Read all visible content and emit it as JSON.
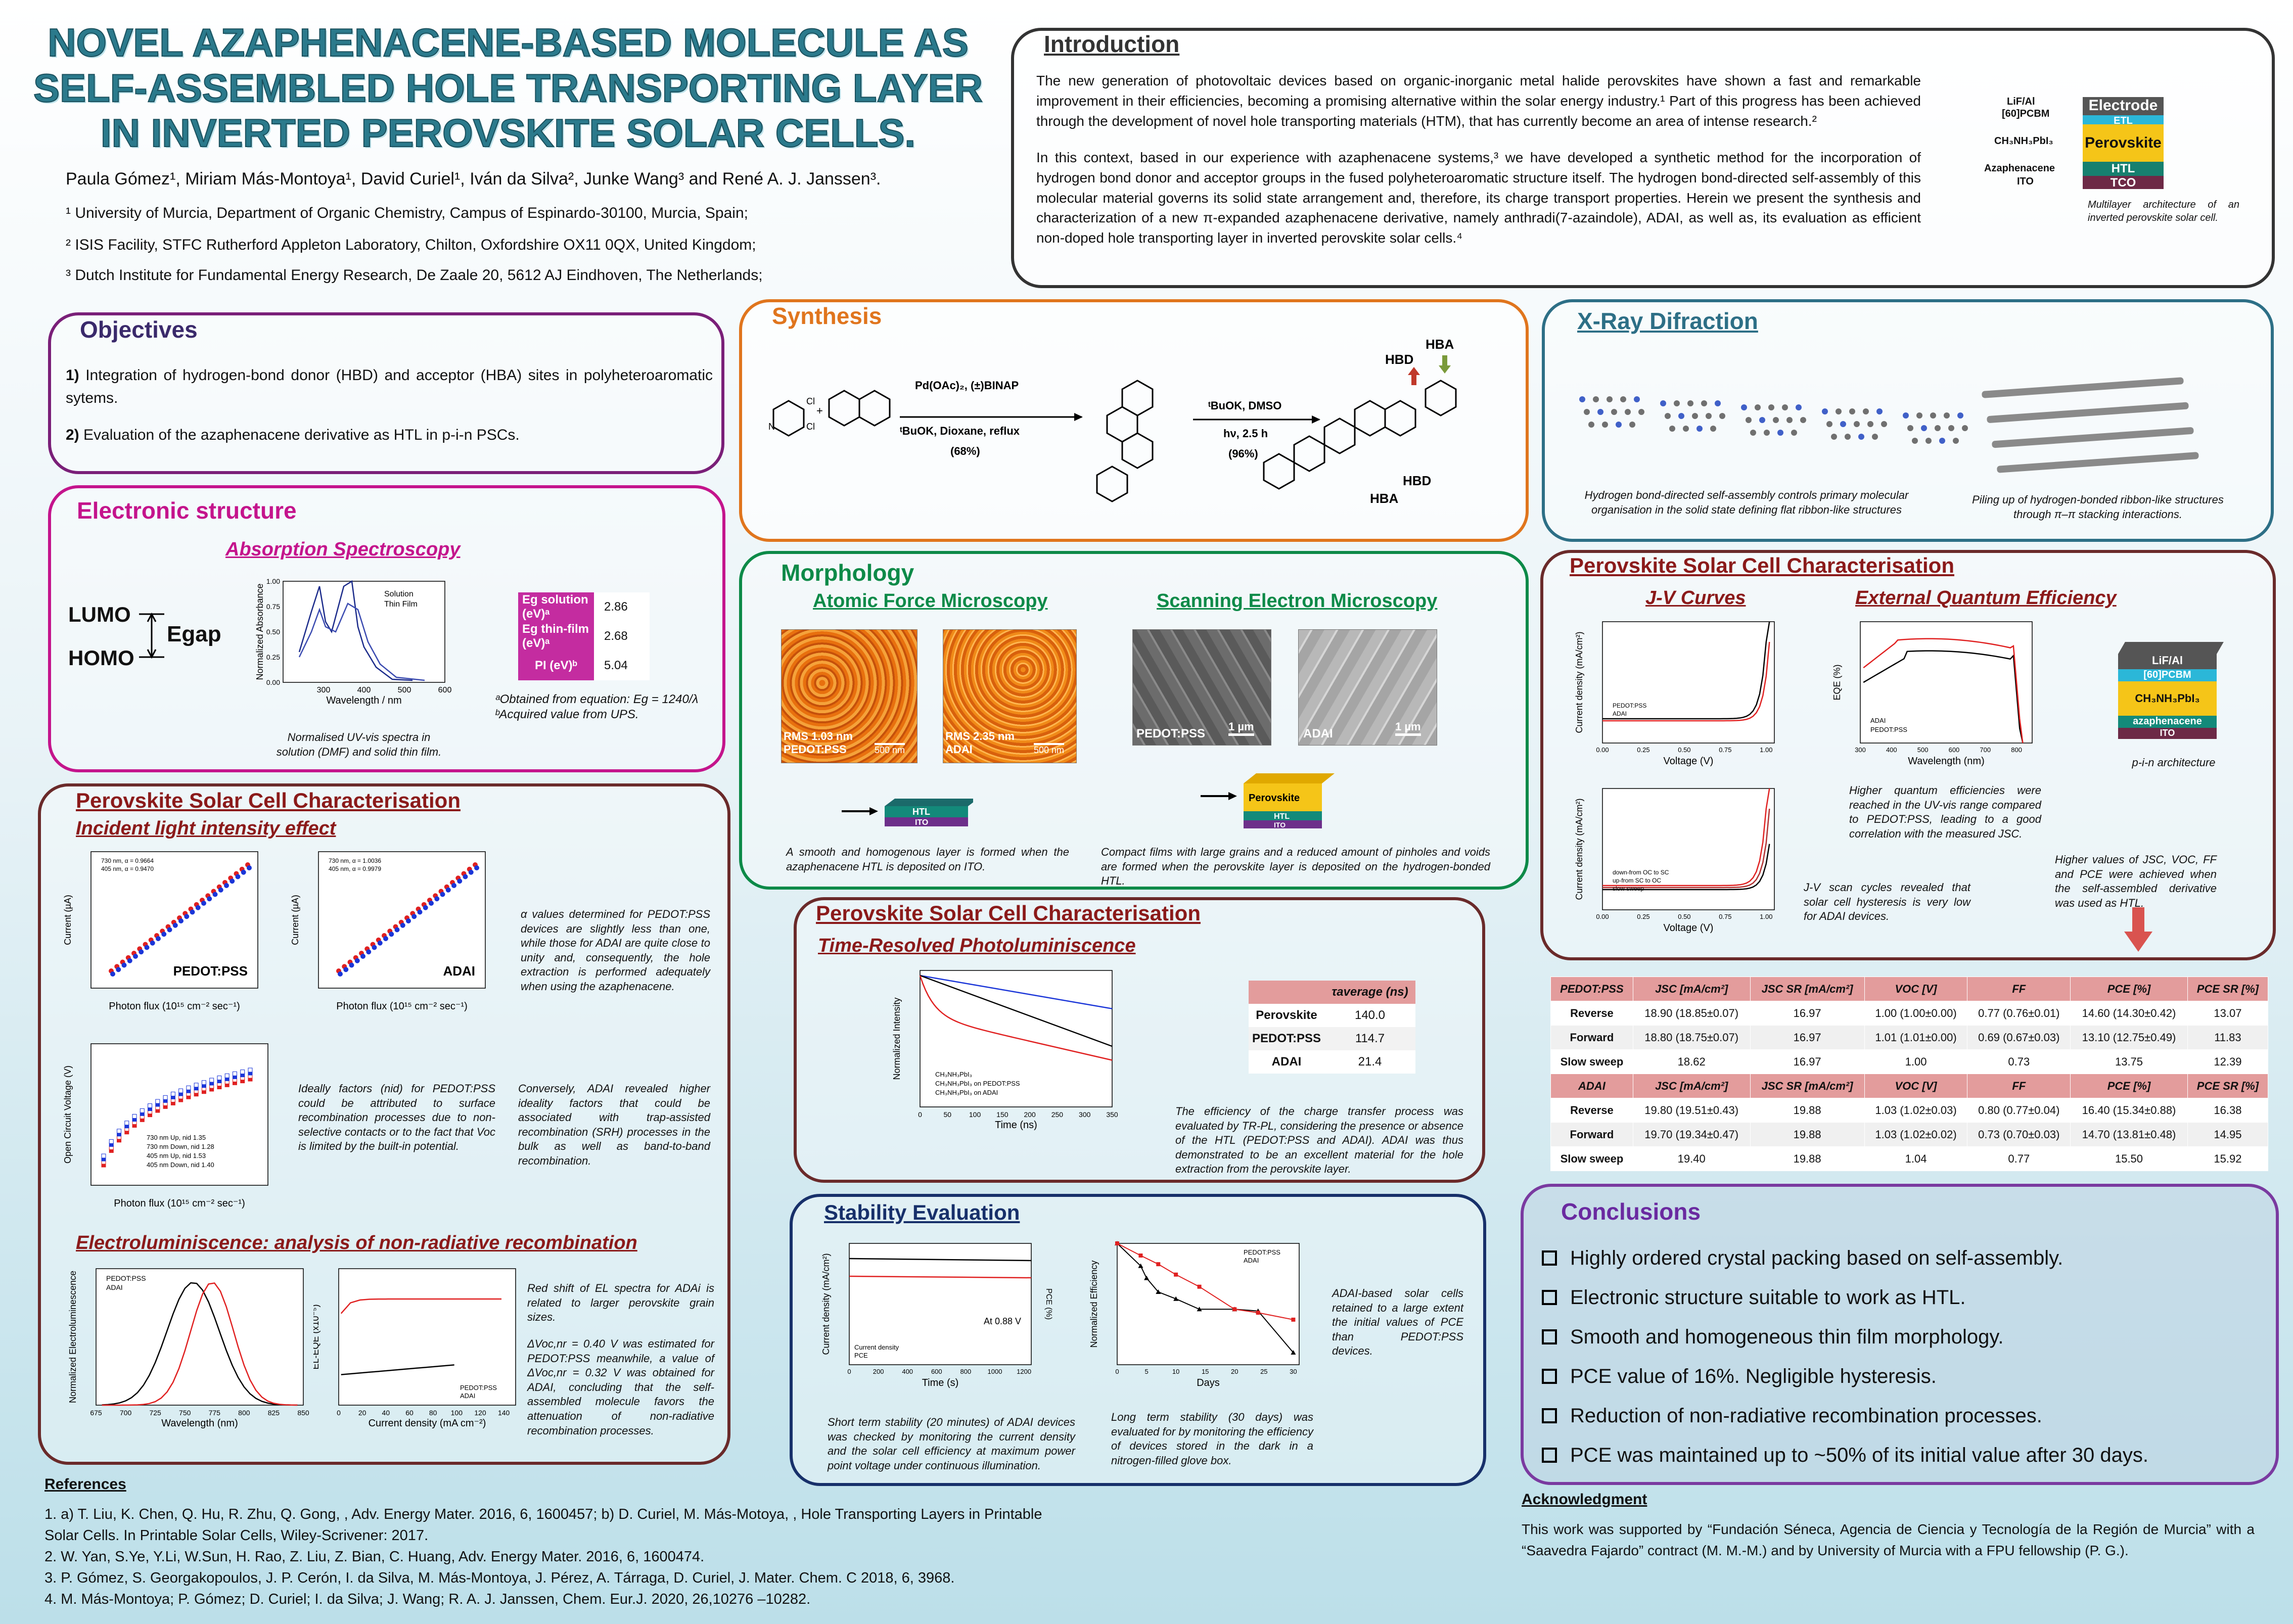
{
  "title": "NOVEL AZAPHENACENE-BASED MOLECULE AS SELF-ASSEMBLED HOLE TRANSPORTING LAYER IN INVERTED PEROVSKITE SOLAR CELLS.",
  "authors": "Paula Gómez¹, Miriam Más-Montoya¹, David Curiel¹, Iván da Silva², Junke Wang³ and René A. J. Janssen³.",
  "affiliations": [
    "¹ University of Murcia, Department of Organic Chemistry, Campus of Espinardo-30100, Murcia, Spain;",
    "² ISIS Facility, STFC Rutherford Appleton Laboratory, Chilton, Oxfordshire OX11 0QX, United Kingdom;",
    "³ Dutch Institute for Fundamental Energy Research, De Zaale 20, 5612 AJ Eindhoven, The Netherlands;"
  ],
  "intro": {
    "title": "Introduction",
    "p1": "The new generation of photovoltaic devices based on organic-inorganic metal halide perovskites have shown a fast and remarkable improvement in their efficiencies, becoming a promising alternative within the solar energy industry.¹ Part of this progress has been achieved through the development of novel hole transporting materials (HTM), that has currently become an area of intense research.²",
    "p2": "In this context, based in our experience with azaphenacene systems,³ we have developed a synthetic method for the incorporation of hydrogen bond donor and acceptor groups in the fused polyheteroaromatic structure itself. The hydrogen bond-directed self-assembly of this molecular material governs its solid state arrangement and, therefore, its charge transport properties. Herein we present the synthesis and characterization of a new π-expanded azaphenacene derivative, namely anthradi(7-azaindole), ADAI, as well as, its evaluation as efficient non-doped hole transporting layer in inverted perovskite solar cells.⁴",
    "stack_labels": [
      "LiF/Al",
      "[60]PCBM",
      "CH₃NH₃PbI₃",
      "Azaphenacene",
      "ITO"
    ],
    "stack_layers": [
      "Electrode",
      "ETL",
      "Perovskite",
      "HTL",
      "TCO"
    ],
    "caption": "Multilayer architecture of an inverted perovskite solar cell."
  },
  "objectives": {
    "title": "Objectives",
    "o1_num": "1)",
    "o1": "Integration of hydrogen-bond donor (HBD) and acceptor (HBA) sites in polyheteroaromatic sytems.",
    "o2_num": "2)",
    "o2": "Evaluation of the azaphenacene derivative as HTL in p-i-n PSCs."
  },
  "synthesis": {
    "title": "Synthesis",
    "step1_top": "Pd(OAc)₂, (±)BINAP",
    "step1_bot": "ᵗBuOK, Dioxane, reflux",
    "step1_yield": "(68%)",
    "step2_top": "ᵗBuOK, DMSO",
    "step2_bot": "hν, 2.5 h",
    "step2_yield": "(96%)",
    "hbd": "HBD",
    "hba": "HBA"
  },
  "xray": {
    "title": "X-Ray Difraction",
    "cap1": "Hydrogen bond-directed self-assembly controls primary molecular organisation in the solid state defining flat ribbon-like structures",
    "cap2": "Piling up of hydrogen-bonded ribbon-like structures through π–π stacking interactions."
  },
  "electronic": {
    "title": "Electronic structure",
    "sub": "Absorption Spectroscopy",
    "lumo": "LUMO",
    "homo": "HOMO",
    "egap": "Egap",
    "legend1": "Solution",
    "legend2": "Thin Film",
    "xlabel": "Wavelength / nm",
    "ylabel": "Normalized Absorbance",
    "caption": "Normalised UV-vis spectra in solution (DMF) and solid thin film.",
    "table": [
      {
        "k": "Eg solution (eV)ᵃ",
        "v": "2.86"
      },
      {
        "k": "Eg thin-film (eV)ᵃ",
        "v": "2.68"
      },
      {
        "k": "PI (eV)ᵇ",
        "v": "5.04"
      }
    ],
    "note1": "ᵃObtained from equation: Eg = 1240/λ",
    "note2": "ᵇAcquired value from UPS."
  },
  "morph": {
    "title": "Morphology",
    "afm": "Atomic Force Microscopy",
    "sem": "Scanning Electron Microscopy",
    "afm1": "RMS 1.03 nm PEDOT:PSS",
    "afm2": "RMS 2.35 nm ADAI",
    "scale_afm": "500 nm",
    "sem1": "PEDOT:PSS",
    "sem2": "ADAI",
    "scale_sem": "1 µm",
    "htl": "HTL",
    "ito": "ITO",
    "perov": "Perovskite",
    "cap1": "A smooth and homogenous layer is formed when the azaphenacene HTL is deposited on ITO.",
    "cap2": "Compact films with large grains and a reduced amount of pinholes and voids are formed when the perovskite layer is deposited on the hydrogen-bonded HTL."
  },
  "psc_left": {
    "title": "Perovskite Solar Cell Characterisation",
    "sub1": "Incident light intensity effect",
    "pedot": "PEDOT:PSS",
    "adai": "ADAI",
    "xlabel": "Photon flux (10¹⁵ cm⁻² sec⁻¹)",
    "ylabel_i": "Current (µA)",
    "ylabel_v": "Open Circuit Voltage (V)",
    "leg_a1": "730 nm, α = 0.9664",
    "leg_a2": "405 nm, α = 0.9470",
    "leg_b1": "730 nm, α = 1.0036",
    "leg_b2": "405 nm, α = 0.9979",
    "alpha_text": "α values determined for PEDOT:PSS devices are slightly less than one, while those for ADAI are quite close to unity and, consequently, the hole extraction is performed adequately when using the azaphenacene.",
    "ideal_text": "Ideally factors (nid) for PEDOT:PSS could be attributed to surface recombination processes due to non-selective contacts or to the fact that Voc is limited by the built-in potential.",
    "conv_text": "Conversely, ADAI revealed higher ideality factors that could be associated with trap-assisted recombination (SRH) processes in the bulk as well as band-to-band recombination.",
    "voc_leg": [
      "730 nm Up, nid 1.35",
      "730 nm Down, nid 1.28",
      "405 nm Up, nid 1.53",
      "405 nm Down, nid 1.40"
    ],
    "sub2": "Electroluminiscence: analysis of non-radiative recombination",
    "el_ylabel": "Normalized Electroluminescence",
    "el_xlabel": "Wavelength (nm)",
    "eqe_ylabel": "EL-EQE (x10⁻⁵)",
    "eqe_xlabel": "Current density (mA cm⁻²)",
    "el_text": "Red shift of EL spectra for ADAi is related to larger perovskite grain sizes.",
    "dv_text": "ΔVoc,nr = 0.40 V was estimated for PEDOT:PSS meanwhile, a value of ΔVoc,nr = 0.32 V was obtained for ADAI, concluding that the self-assembled molecule favors the attenuation of non-radiative recombination processes."
  },
  "trpl": {
    "title": "Perovskite Solar Cell Characterisation",
    "sub": "Time-Resolved Photoluminiscence",
    "xlabel": "Time (ns)",
    "ylabel": "Normalized Intensity",
    "legend": [
      "CH₃NH₃PbI₃",
      "CH₃NH₃PbI₃ on PEDOT:PSS",
      "CH₃NH₃PbI₃ on ADAI"
    ],
    "th": "τaverage (ns)",
    "rows": [
      [
        "Perovskite",
        "140.0"
      ],
      [
        "PEDOT:PSS",
        "114.7"
      ],
      [
        "ADAI",
        "21.4"
      ]
    ],
    "caption": "The efficiency of the charge transfer process was evaluated by TR-PL, considering the presence or absence of the HTL (PEDOT:PSS and ADAI). ADAI was thus demonstrated to be an excellent material for the hole extraction from the perovskite layer."
  },
  "stab": {
    "title": "Stability Evaluation",
    "at": "At 0.88 V",
    "leg1": "Current density",
    "leg2": "PCE",
    "xl1": "Time (s)",
    "yl1": "Current density (mA/cm²)",
    "yl1b": "PCE (%)",
    "xl2": "Days",
    "yl2": "Normalized Efficiency",
    "leg3": "PEDOT:PSS",
    "leg4": "ADAI",
    "cap1": "Short term stability (20 minutes) of ADAI devices was checked by monitoring the current density and the solar cell efficiency at maximum power point voltage under continuous illumination.",
    "cap2": "Long term stability (30 days) was evaluated for by monitoring the efficiency of devices stored in the dark in a nitrogen-filled glove box.",
    "cap3": "ADAI-based solar cells retained to a large extent the initial values of PCE than PEDOT:PSS devices."
  },
  "psc_right": {
    "title": "Perovskite Solar Cell Characterisation",
    "jv": "J-V Curves",
    "eqe": "External Quantum Efficiency",
    "jv_x": "Voltage (V)",
    "jv_y": "Current density (mA/cm²)",
    "eqe_x": "Wavelength (nm)",
    "eqe_y": "EQE (%)",
    "leg_p": "PEDOT:PSS",
    "leg_a": "ADAI",
    "hyst_leg": [
      "down-from OC to SC",
      "up-from SC to OC",
      "slow sweep"
    ],
    "eqe_text": "Higher quantum efficiencies were reached in the UV-vis range compared to PEDOT:PSS, leading to a good correlation with the measured JSC.",
    "hyst_text": "J-V scan cycles revealed that solar cell hysteresis is very low for ADAI devices.",
    "higher_text": "Higher values of JSC, VOC, FF and PCE were achieved when the self-assembled derivative was used as HTL.",
    "pin_layers": [
      "LiF/Al",
      "[60]PCBM",
      "CH₃NH₃PbI₃",
      "azaphenacene",
      "ITO"
    ],
    "pin_cap": "p-i-n architecture"
  },
  "pvtable": {
    "headers": [
      "JSC [mA/cm²]",
      "JSC SR [mA/cm²]",
      "VOC [V]",
      "FF",
      "PCE [%]",
      "PCE SR [%]"
    ],
    "g1": "PEDOT:PSS",
    "g2": "ADAI",
    "rows1": [
      [
        "Reverse",
        "18.90 (18.85±0.07)",
        "16.97",
        "1.00 (1.00±0.00)",
        "0.77 (0.76±0.01)",
        "14.60 (14.30±0.42)",
        "13.07"
      ],
      [
        "Forward",
        "18.80 (18.75±0.07)",
        "16.97",
        "1.01 (1.01±0.00)",
        "0.69 (0.67±0.03)",
        "13.10 (12.75±0.49)",
        "11.83"
      ],
      [
        "Slow sweep",
        "18.62",
        "16.97",
        "1.00",
        "0.73",
        "13.75",
        "12.39"
      ]
    ],
    "rows2": [
      [
        "Reverse",
        "19.80 (19.51±0.43)",
        "19.88",
        "1.03 (1.02±0.03)",
        "0.80 (0.77±0.04)",
        "16.40 (15.34±0.88)",
        "16.38"
      ],
      [
        "Forward",
        "19.70 (19.34±0.47)",
        "19.88",
        "1.03 (1.02±0.02)",
        "0.73 (0.70±0.03)",
        "14.70 (13.81±0.48)",
        "14.95"
      ],
      [
        "Slow sweep",
        "19.40",
        "19.88",
        "1.04",
        "0.77",
        "15.50",
        "15.92"
      ]
    ]
  },
  "conclusions": {
    "title": "Conclusions",
    "items": [
      "Highly ordered crystal packing based on self-assembly.",
      "Electronic structure suitable to work as HTL.",
      "Smooth and homogeneous thin film morphology.",
      "PCE value of 16%. Negligible hysteresis.",
      "Reduction of non-radiative recombination processes.",
      "PCE was maintained up to ~50% of its initial value after 30 days."
    ]
  },
  "references": {
    "title": "References",
    "items": [
      "1. a) T. Liu, K. Chen, Q. Hu, R. Zhu, Q. Gong, , Adv. Energy Mater. 2016, 6, 1600457; b) D. Curiel, M. Más-Motoya, , Hole Transporting Layers in Printable Solar Cells. In Printable Solar Cells, Wiley-Scrivener: 2017.",
      "2. W. Yan, S.Ye, Y.Li, W.Sun, H. Rao, Z. Liu, Z. Bian, C. Huang, Adv. Energy Mater. 2016, 6, 1600474.",
      "3. P. Gómez, S. Georgakopoulos, J. P. Cerón, I. da Silva, M. Más-Montoya, J. Pérez, A. Tárraga, D. Curiel, J. Mater. Chem. C 2018, 6, 3968.",
      "4. M. Más-Montoya; P. Gómez; D. Curiel; I. da Silva; J. Wang; R. A. J. Janssen, Chem. Eur.J. 2020, 26,10276 –10282."
    ]
  },
  "ack": {
    "title": "Acknowledgment",
    "text": "This work was supported by “Fundación Séneca, Agencia de Ciencia y Tecnología de la Región de Murcia” with a “Saavedra Fajardo” contract (M. M.-M.) and by University of Murcia with a FPU fellowship (P. G.)."
  }
}
